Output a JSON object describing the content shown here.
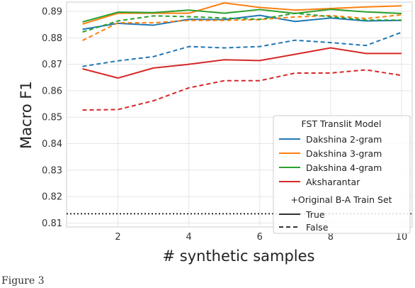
{
  "chart_data": {
    "type": "line",
    "xlabel": "# synthetic samples",
    "ylabel": "Macro F1",
    "x": [
      1,
      2,
      3,
      4,
      5,
      6,
      7,
      8,
      9,
      10
    ],
    "xticks": [
      2,
      4,
      6,
      8,
      10
    ],
    "yticks": [
      0.81,
      0.82,
      0.83,
      0.84,
      0.85,
      0.86,
      0.87,
      0.88,
      0.89
    ],
    "xlim": [
      0.55,
      10.3
    ],
    "ylim": [
      0.8085,
      0.8935
    ],
    "grid": true,
    "legend_placement": "lower-right",
    "legend_title": "FST Translit Model",
    "style_legend_title": "+Original B-A Train Set",
    "style_true_label": "True",
    "style_false_label": "False",
    "baseline": {
      "value": 0.8135,
      "style": "dotted",
      "color": "#111111"
    },
    "series": [
      {
        "name": "Dakshina 2-gram",
        "color": "#1f77b4",
        "style": "solid",
        "values": [
          0.8832,
          0.8855,
          0.8848,
          0.887,
          0.8869,
          0.8885,
          0.8862,
          0.8875,
          0.8864,
          0.8866
        ]
      },
      {
        "name": "Dakshina 3-gram",
        "color": "#ff7f0e",
        "style": "solid",
        "values": [
          0.8852,
          0.8893,
          0.8893,
          0.8893,
          0.8932,
          0.8915,
          0.8905,
          0.8911,
          0.8917,
          0.8921
        ]
      },
      {
        "name": "Dakshina 4-gram",
        "color": "#2ca02c",
        "style": "solid",
        "values": [
          0.886,
          0.8897,
          0.8895,
          0.8905,
          0.8893,
          0.8907,
          0.8892,
          0.8908,
          0.8898,
          0.8892
        ]
      },
      {
        "name": "Aksharantar",
        "color": "#d62728",
        "style": "solid",
        "values": [
          0.8683,
          0.8648,
          0.8686,
          0.87,
          0.8717,
          0.8714,
          0.8738,
          0.8762,
          0.8741,
          0.8741
        ]
      },
      {
        "name": "Dakshina 2-gram",
        "color": "#1f77b4",
        "style": "dashed",
        "values": [
          0.8692,
          0.8713,
          0.8729,
          0.8767,
          0.8762,
          0.8767,
          0.8791,
          0.8782,
          0.8771,
          0.8821
        ]
      },
      {
        "name": "Dakshina 3-gram",
        "color": "#ff7f0e",
        "style": "dashed",
        "values": [
          0.879,
          0.8857,
          0.8857,
          0.8866,
          0.8866,
          0.8869,
          0.8879,
          0.8884,
          0.8873,
          0.8887
        ]
      },
      {
        "name": "Dakshina 4-gram",
        "color": "#2ca02c",
        "style": "dashed",
        "values": [
          0.8822,
          0.8864,
          0.8883,
          0.888,
          0.8875,
          0.887,
          0.8893,
          0.888,
          0.8867,
          0.8867
        ]
      },
      {
        "name": "Aksharantar",
        "color": "#d62728",
        "style": "dashed",
        "values": [
          0.8527,
          0.8529,
          0.8562,
          0.8611,
          0.8638,
          0.8638,
          0.8667,
          0.8667,
          0.8679,
          0.8658
        ]
      }
    ]
  },
  "caption": "Figure 3"
}
